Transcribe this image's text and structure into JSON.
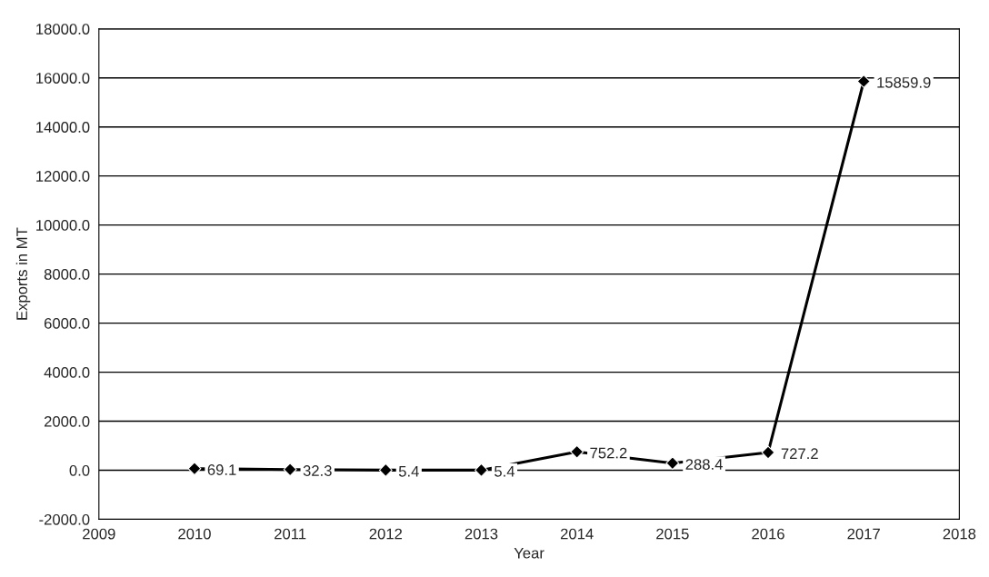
{
  "chart_data": {
    "type": "line",
    "xlabel": "Year",
    "ylabel": "Exports in MT",
    "x": [
      2010,
      2011,
      2012,
      2013,
      2014,
      2015,
      2016,
      2017
    ],
    "series": [
      {
        "color": "#000000",
        "values": [
          69.1,
          32.3,
          5.4,
          5.4,
          752.2,
          288.4,
          727.2,
          15859.9
        ]
      }
    ],
    "value_labels": [
      "69.1",
      "32.3",
      "5.4",
      "5.4",
      "752.2",
      "288.4",
      "727.2",
      "15859.9"
    ],
    "xlim": [
      2009,
      2018
    ],
    "xticks": [
      2009,
      2010,
      2011,
      2012,
      2013,
      2014,
      2015,
      2016,
      2017,
      2018
    ],
    "ylim": [
      -2000,
      18000
    ],
    "yticks": [
      {
        "value": -2000,
        "label": "-2000.0"
      },
      {
        "value": 0,
        "label": "0.0"
      },
      {
        "value": 2000,
        "label": "2000.0"
      },
      {
        "value": 4000,
        "label": "4000.0"
      },
      {
        "value": 6000,
        "label": "6000.0"
      },
      {
        "value": 8000,
        "label": "8000.0"
      },
      {
        "value": 10000,
        "label": "10000.0"
      },
      {
        "value": 12000,
        "label": "12000.0"
      },
      {
        "value": 14000,
        "label": "14000.0"
      },
      {
        "value": 16000,
        "label": "16000.0"
      },
      {
        "value": 18000,
        "label": "18000.0"
      }
    ],
    "grid": "y",
    "marker": "diamond",
    "line_style": "solid",
    "legend": false
  }
}
